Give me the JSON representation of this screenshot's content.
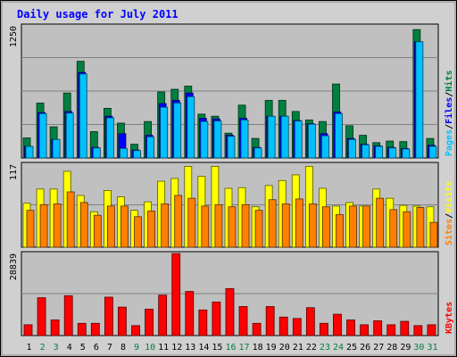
{
  "chart_data": {
    "type": "bar",
    "title": "Daily usage for July 2011",
    "categories": [
      "1",
      "2",
      "3",
      "4",
      "5",
      "6",
      "7",
      "8",
      "9",
      "10",
      "11",
      "12",
      "13",
      "14",
      "15",
      "16",
      "17",
      "18",
      "19",
      "20",
      "21",
      "22",
      "23",
      "24",
      "25",
      "26",
      "27",
      "28",
      "29",
      "30",
      "31"
    ],
    "weekend_days": [
      "2",
      "3",
      "9",
      "10",
      "16",
      "17",
      "23",
      "24",
      "30",
      "31"
    ],
    "panels": [
      {
        "id": "hits-files-pages",
        "ymax_label": "1250",
        "ylim": [
          0,
          1250
        ],
        "series": [
          {
            "name": "Hits",
            "color": "#008040",
            "values": [
              190,
              520,
              295,
              615,
              915,
              250,
              470,
              330,
              130,
              345,
              625,
              650,
              680,
              415,
              395,
              235,
              500,
              185,
              545,
              545,
              440,
              360,
              345,
              700,
              305,
              215,
              145,
              160,
              155,
              1215,
              185
            ]
          },
          {
            "name": "Files",
            "color": "#0000ff",
            "values": [
              110,
              430,
              175,
              440,
              810,
              100,
              395,
              230,
              75,
              215,
              515,
              545,
              615,
              375,
              370,
              215,
              375,
              100,
              395,
              395,
              355,
              325,
              230,
              435,
              185,
              130,
              115,
              100,
              90,
              1100,
              120
            ]
          },
          {
            "name": "Pages",
            "color": "#00c0ff",
            "values": [
              110,
              420,
              175,
              425,
              795,
              95,
              380,
              90,
              70,
              200,
              480,
              520,
              580,
              345,
              350,
              205,
              360,
              95,
              395,
              395,
              350,
              320,
              210,
              420,
              175,
              125,
              110,
              95,
              85,
              1100,
              110
            ]
          }
        ],
        "right_label": [
          "Pages",
          "Files",
          "Hits"
        ]
      },
      {
        "id": "visits-sites",
        "ymax_label": "117",
        "ylim": [
          0,
          117
        ],
        "series": [
          {
            "name": "Visits",
            "color": "#ffff00",
            "values": [
              62,
              82,
              82,
              107,
              73,
              50,
              80,
              71,
              52,
              64,
              93,
              97,
              114,
              100,
              114,
              83,
              84,
              57,
              87,
              94,
              102,
              114,
              83,
              58,
              63,
              58,
              82,
              69,
              59,
              58,
              57
            ]
          },
          {
            "name": "Sites",
            "color": "#ff8000",
            "values": [
              52,
              60,
              61,
              78,
              63,
              45,
              58,
              58,
              43,
              51,
              61,
              73,
              69,
              58,
              60,
              57,
              60,
              52,
              67,
              61,
              68,
              61,
              57,
              46,
              58,
              58,
              69,
              53,
              50,
              56,
              35
            ]
          }
        ],
        "right_label": [
          "Sites",
          "Visits"
        ]
      },
      {
        "id": "kbytes",
        "ymax_label": "28839",
        "ylim": [
          0,
          28839
        ],
        "series": [
          {
            "name": "KBytes",
            "color": "#ff0000",
            "values": [
              3800,
              13300,
              5500,
              14000,
              4300,
              4300,
              13500,
              10000,
              3500,
              9300,
              14200,
              28800,
              15500,
              9000,
              11800,
              16500,
              10200,
              4300,
              10200,
              6500,
              6000,
              9800,
              4300,
              7500,
              5500,
              3800,
              5200,
              3800,
              5000,
              3500,
              3800
            ]
          }
        ],
        "right_label": [
          "KBytes"
        ]
      }
    ]
  },
  "colors": {
    "title": "#0000ff",
    "background": "#c0c0c0",
    "gridline": "#808080",
    "weekday_label": "#000000",
    "weekend_label": "#008040"
  }
}
